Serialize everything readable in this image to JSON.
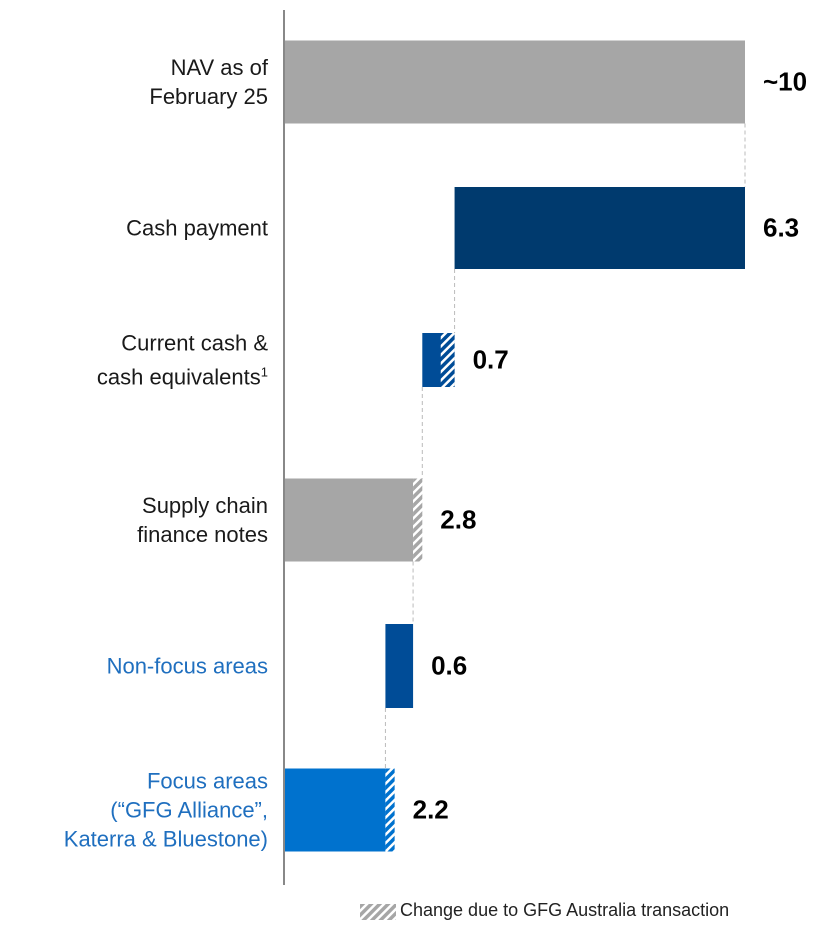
{
  "chart_data": {
    "type": "waterfall",
    "orientation": "horizontal",
    "categories": [
      "NAV as of\nFebruary 25",
      "Cash payment",
      "Current cash &\ncash equivalents",
      "Supply chain\nfinance notes",
      "Non-focus areas",
      "Focus areas\n(“GFG Alliance”,\nKaterra & Bluestone)"
    ],
    "category_footnotes": [
      null,
      null,
      "1",
      null,
      null,
      null
    ],
    "category_colors": [
      "#1a1a1a",
      "#1a1a1a",
      "#1a1a1a",
      "#1a1a1a",
      "#1f6fbf",
      "#1f6fbf"
    ],
    "measure": [
      "total",
      "decrease",
      "decrease",
      "total",
      "decrease",
      "total"
    ],
    "values": [
      10,
      6.3,
      0.7,
      2.8,
      0.6,
      2.2
    ],
    "value_labels": [
      "~10",
      "6.3",
      "0.7",
      "2.8",
      "0.6",
      "2.2"
    ],
    "hatched": [
      null,
      null,
      0.3,
      0.2,
      null,
      0.2
    ],
    "colors": [
      "#a6a6a6",
      "#003a6e",
      "#004c97",
      "#a6a6a6",
      "#004c97",
      "#0072ce"
    ],
    "xlim": [
      0,
      10
    ],
    "legend": {
      "label": "Change due to GFG Australia transaction",
      "color": "#a6a6a6"
    }
  }
}
